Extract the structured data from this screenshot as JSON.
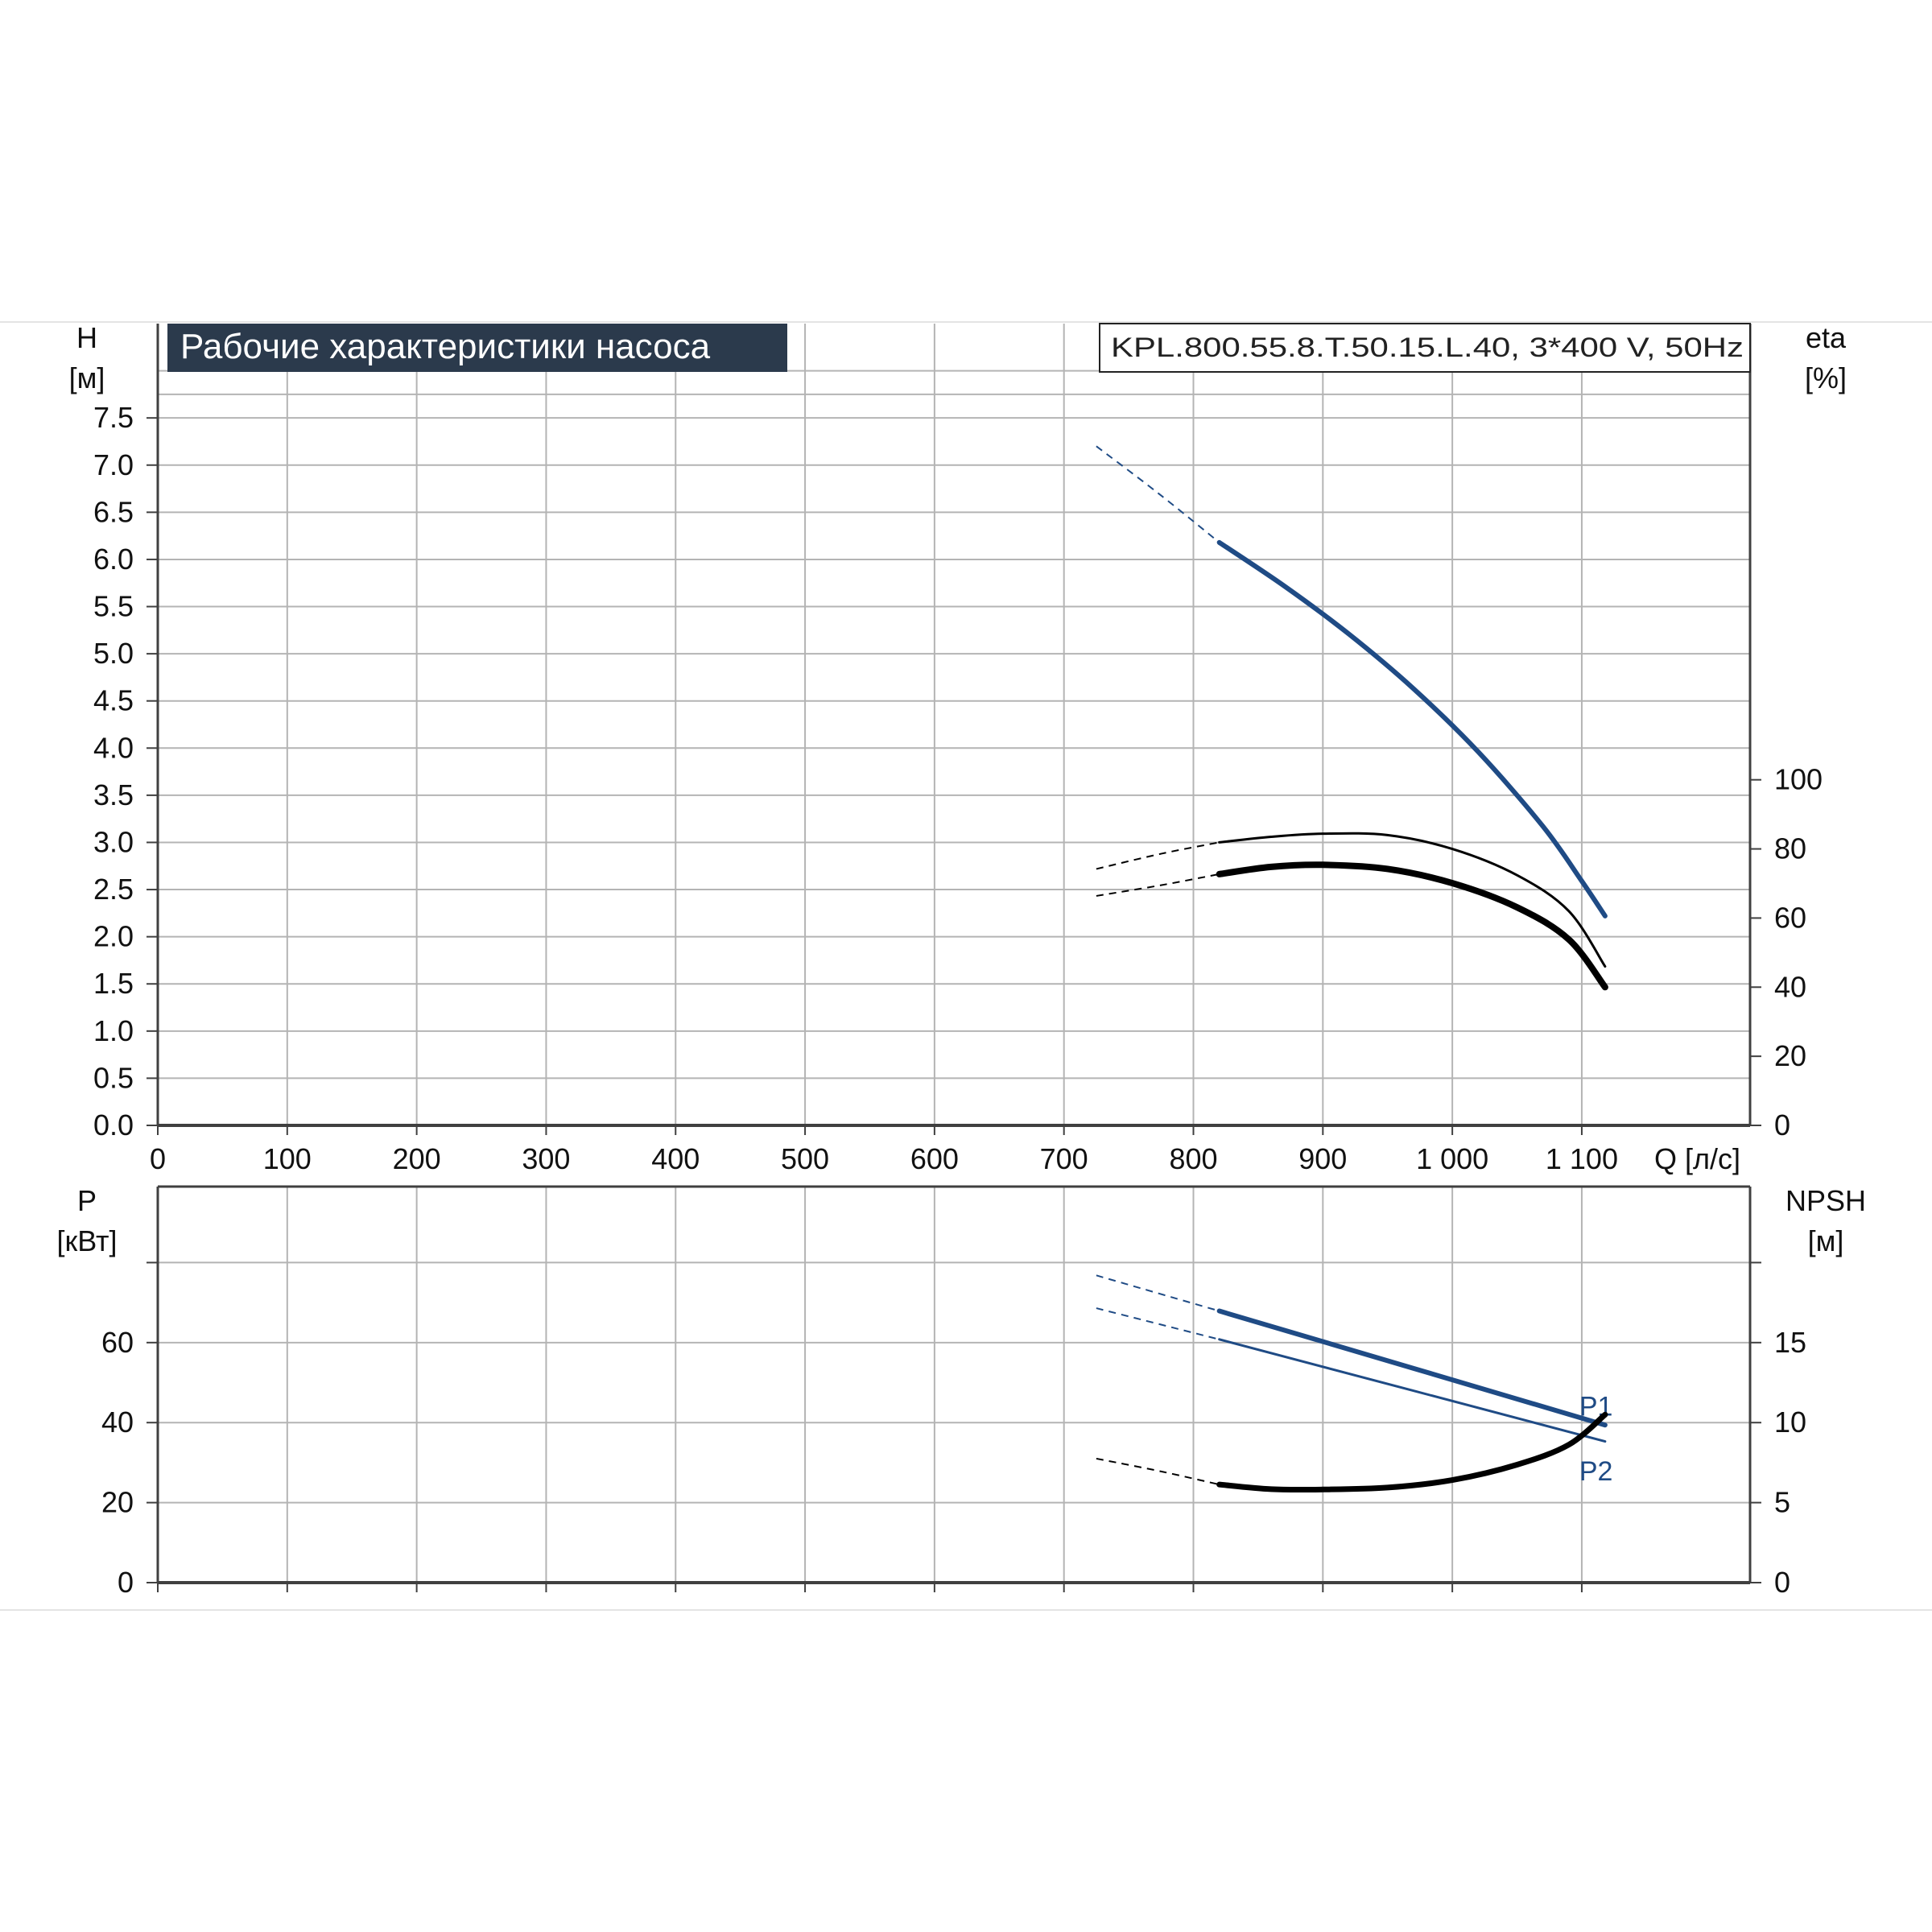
{
  "page": {
    "title_badge": "Рабочие характеристики насоса",
    "model_label": "KPL.800.55.8.T.50.15.L.40, 3*400 V, 50Hz"
  },
  "colors": {
    "blue": "#1f4b85",
    "black": "#000000",
    "grid": "#b4b4b4",
    "axis": "#404040",
    "badge_bg": "#2b3a4c",
    "badge_text": "#ffffff"
  },
  "chart_data": [
    {
      "id": "top",
      "type": "line",
      "title": "Рабочие характеристики насоса",
      "x_axis": {
        "label": "Q [л/с]",
        "range": [
          0,
          1230
        ],
        "ticks": [
          0,
          100,
          200,
          300,
          400,
          500,
          600,
          700,
          800,
          900,
          1000,
          1100
        ],
        "tick_labels": [
          "0",
          "100",
          "200",
          "300",
          "400",
          "500",
          "600",
          "700",
          "800",
          "900",
          "1 000",
          "1 100"
        ]
      },
      "y_left": {
        "label_top": "H",
        "label_unit": "[м]",
        "range": [
          0,
          8.5
        ],
        "ticks": [
          0,
          0.5,
          1,
          1.5,
          2,
          2.5,
          3,
          3.5,
          4,
          4.5,
          5,
          5.5,
          6,
          6.5,
          7,
          7.5
        ],
        "tick_labels": [
          "0.0",
          "0.5",
          "1.0",
          "1.5",
          "2.0",
          "2.5",
          "3.0",
          "3.5",
          "4.0",
          "4.5",
          "5.0",
          "5.5",
          "6.0",
          "6.5",
          "7.0",
          "7.5"
        ]
      },
      "y_right": {
        "label_top": "eta",
        "label_unit": "[%]",
        "range": [
          0,
          232
        ],
        "ticks": [
          0,
          20,
          40,
          60,
          80,
          100
        ],
        "tick_labels": [
          "0",
          "20",
          "40",
          "60",
          "80",
          "100"
        ]
      },
      "grid": true,
      "series": [
        {
          "axis": "left",
          "color": "blue",
          "width": 6,
          "dashed": [
            [
              725,
              7.2
            ],
            [
              773,
              6.7
            ],
            [
              820,
              6.18
            ]
          ],
          "solid": [
            [
              820,
              6.18
            ],
            [
              870,
              5.72
            ],
            [
              920,
              5.21
            ],
            [
              970,
              4.63
            ],
            [
              1020,
              3.96
            ],
            [
              1070,
              3.17
            ],
            [
              1100,
              2.59
            ],
            [
              1118,
              2.22
            ]
          ]
        },
        {
          "axis": "right",
          "color": "black",
          "width": 3,
          "dashed": [
            [
              725,
              74.2
            ],
            [
              775,
              78.6
            ],
            [
              820,
              81.9
            ]
          ],
          "solid": [
            [
              820,
              81.9
            ],
            [
              860,
              83.5
            ],
            [
              900,
              84.4
            ],
            [
              950,
              84.0
            ],
            [
              1000,
              80.0
            ],
            [
              1050,
              72.4
            ],
            [
              1090,
              62.0
            ],
            [
              1118,
              46.0
            ]
          ]
        },
        {
          "axis": "right",
          "color": "black",
          "width": 8,
          "dashed": [
            [
              725,
              66.4
            ],
            [
              775,
              69.5
            ],
            [
              820,
              72.7
            ]
          ],
          "solid": [
            [
              820,
              72.7
            ],
            [
              860,
              74.8
            ],
            [
              900,
              75.4
            ],
            [
              950,
              74.2
            ],
            [
              1000,
              70.1
            ],
            [
              1050,
              63.1
            ],
            [
              1090,
              53.8
            ],
            [
              1118,
              40.0
            ]
          ]
        }
      ]
    },
    {
      "id": "bottom",
      "type": "line",
      "x_axis": {
        "label": "",
        "range": [
          0,
          1230
        ],
        "ticks": [
          0,
          100,
          200,
          300,
          400,
          500,
          600,
          700,
          800,
          900,
          1000,
          1100
        ],
        "tick_labels": []
      },
      "y_left": {
        "label_top": "P",
        "label_unit": "[кВт]",
        "range": [
          0,
          99
        ],
        "ticks": [
          0,
          20,
          40,
          60,
          80
        ],
        "tick_labels": [
          "0",
          "20",
          "40",
          "60",
          ""
        ]
      },
      "y_right": {
        "label_top": "NPSH",
        "label_unit": "[м]",
        "range": [
          0,
          24.75
        ],
        "ticks": [
          0,
          5,
          10,
          15,
          20
        ],
        "tick_labels": [
          "0",
          "5",
          "10",
          "15",
          ""
        ]
      },
      "grid": true,
      "series": [
        {
          "name": "P1",
          "axis": "left",
          "color": "blue",
          "width": 6,
          "dashed": [
            [
              725,
              76.8
            ],
            [
              820,
              67.9
            ]
          ],
          "solid": [
            [
              820,
              67.9
            ],
            [
              1118,
              39.4
            ]
          ],
          "label_at": [
            1118,
            44.2
          ]
        },
        {
          "name": "P2",
          "axis": "left",
          "color": "blue",
          "width": 3,
          "dashed": [
            [
              725,
              68.6
            ],
            [
              820,
              60.8
            ]
          ],
          "solid": [
            [
              820,
              60.8
            ],
            [
              1118,
              35.3
            ]
          ],
          "label_at": [
            1118,
            28.0
          ]
        },
        {
          "axis": "right",
          "color": "black",
          "width": 7,
          "dashed": [
            [
              725,
              7.75
            ],
            [
              775,
              6.95
            ],
            [
              820,
              6.13
            ]
          ],
          "solid": [
            [
              820,
              6.13
            ],
            [
              860,
              5.84
            ],
            [
              900,
              5.82
            ],
            [
              950,
              5.94
            ],
            [
              1000,
              6.41
            ],
            [
              1050,
              7.37
            ],
            [
              1090,
              8.62
            ],
            [
              1118,
              10.5
            ]
          ]
        }
      ]
    }
  ]
}
